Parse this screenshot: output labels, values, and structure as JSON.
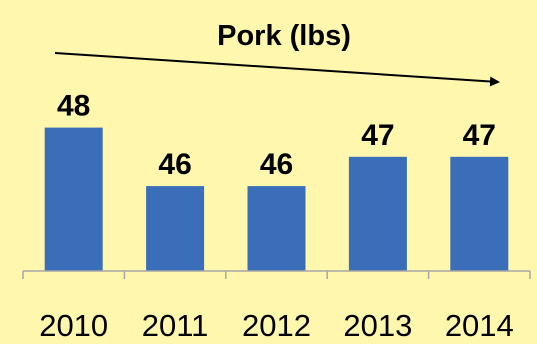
{
  "chart_data": {
    "type": "bar",
    "title": "Pork (lbs)",
    "categories": [
      "2010",
      "2011",
      "2012",
      "2013",
      "2014"
    ],
    "series": [
      {
        "values": [
          48,
          46,
          46,
          47,
          47
        ],
        "display_labels": [
          "48",
          "46",
          "46",
          "47",
          "47"
        ]
      }
    ],
    "xlabel": "",
    "ylabel": "",
    "ylim": [
      43.1,
      48.6
    ],
    "grid": false,
    "legend": "none",
    "trend_arrow": true,
    "colors": {
      "background": "#FFF7AE",
      "bar": "#3A6EB8",
      "axis": "#A6A6A6",
      "arrow": "#000000",
      "text": "#000000"
    }
  }
}
